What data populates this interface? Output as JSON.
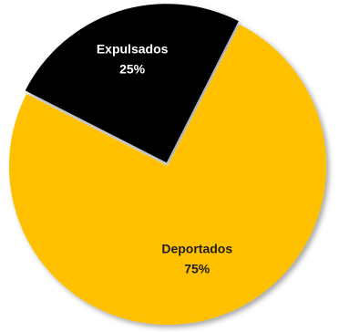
{
  "chart_data": {
    "type": "pie",
    "title": "",
    "slices": [
      {
        "label": "Deportados",
        "value": 75,
        "value_label": "75%",
        "color": "#FFC000",
        "label_color": "#1F1F1F"
      },
      {
        "label": "Expulsados",
        "value": 25,
        "value_label": "25%",
        "color": "#000000",
        "label_color": "#FFFFFF"
      }
    ],
    "legend": "none",
    "data_labels": "inside"
  }
}
